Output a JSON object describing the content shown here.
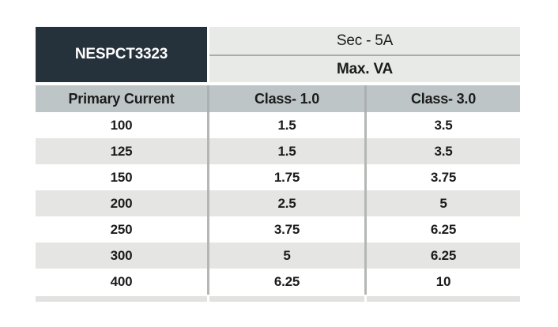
{
  "table": {
    "model": "NESPCT3323",
    "sec_header": "Sec - 5A",
    "max_va_header": "Max. VA",
    "columns": [
      "Primary Current",
      "Class- 1.0",
      "Class- 3.0"
    ],
    "rows": [
      [
        "100",
        "1.5",
        "3.5"
      ],
      [
        "125",
        "1.5",
        "3.5"
      ],
      [
        "150",
        "1.75",
        "3.75"
      ],
      [
        "200",
        "2.5",
        "5"
      ],
      [
        "250",
        "3.75",
        "6.25"
      ],
      [
        "300",
        "5",
        "6.25"
      ],
      [
        "400",
        "6.25",
        "10"
      ]
    ]
  },
  "colors": {
    "model_cell_bg": "#26323b",
    "model_cell_text": "#ffffff",
    "header_bg": "#e8eae7",
    "column_header_bg": "#bec5c7",
    "alt_row_bg": "#e5e5e3",
    "divider_line": "#b4b7b5",
    "text": "#1b1b1b"
  },
  "chart_data": {
    "type": "table",
    "title": "NESPCT3323 — Sec - 5A — Max. VA",
    "categories": [
      "Primary Current",
      "Class- 1.0",
      "Class- 3.0"
    ],
    "series": [
      {
        "name": "Class- 1.0",
        "x": [
          100,
          125,
          150,
          200,
          250,
          300,
          400
        ],
        "values": [
          1.5,
          1.5,
          1.75,
          2.5,
          3.75,
          5,
          6.25
        ]
      },
      {
        "name": "Class- 3.0",
        "x": [
          100,
          125,
          150,
          200,
          250,
          300,
          400
        ],
        "values": [
          3.5,
          3.5,
          3.75,
          5,
          6.25,
          6.25,
          10
        ]
      }
    ]
  }
}
